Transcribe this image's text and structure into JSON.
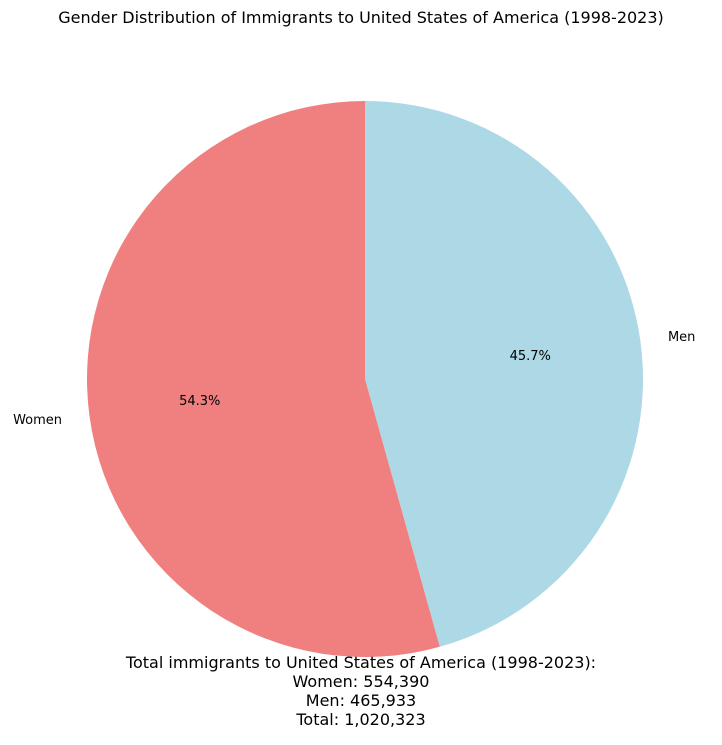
{
  "chart_data": {
    "type": "pie",
    "title": "Gender Distribution of Immigrants to United States of America (1998-2023)",
    "categories": [
      "Men",
      "Women"
    ],
    "values": [
      465933,
      554390
    ],
    "percent_labels": [
      "45.7%",
      "54.3%"
    ],
    "colors": [
      "#add8e6",
      "#f08080"
    ],
    "start_angle_deg": 90,
    "direction": "clockwise",
    "legend": "none"
  },
  "summary": {
    "heading": "Total immigrants to United States of America (1998-2023):",
    "women": "Women: 554,390",
    "men": "Men: 465,933",
    "total": "Total: 1,020,323"
  }
}
